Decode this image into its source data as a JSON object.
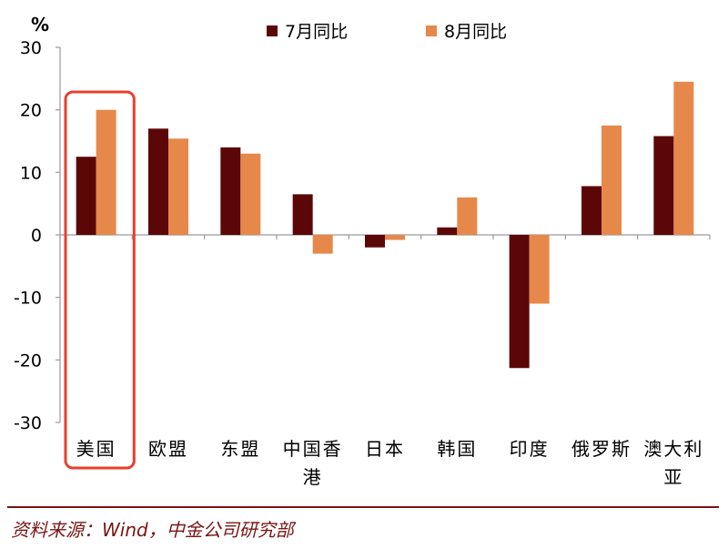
{
  "chart_data": {
    "type": "bar",
    "ylabel": "%",
    "ylim": [
      -30,
      30
    ],
    "yticks": [
      30,
      20,
      10,
      0,
      -10,
      -20,
      -30
    ],
    "categories": [
      "美国",
      "欧盟",
      "东盟",
      "中国香港",
      "日本",
      "韩国",
      "印度",
      "俄罗斯",
      "澳大利亚"
    ],
    "category_lines": [
      [
        "美国"
      ],
      [
        "欧盟"
      ],
      [
        "东盟"
      ],
      [
        "中国香",
        "港"
      ],
      [
        "日本"
      ],
      [
        "韩国"
      ],
      [
        "印度"
      ],
      [
        "俄罗斯"
      ],
      [
        "澳大利",
        "亚"
      ]
    ],
    "series": [
      {
        "name": "7月同比",
        "color": "#5c0707",
        "values": [
          12.5,
          17.0,
          14.0,
          6.5,
          -2.0,
          1.2,
          -21.3,
          7.8,
          15.8
        ]
      },
      {
        "name": "8月同比",
        "color": "#e5884a",
        "values": [
          20.0,
          15.4,
          13.0,
          -3.0,
          -0.8,
          6.0,
          -11.0,
          17.5,
          24.5
        ]
      }
    ],
    "legend_position": "top",
    "highlight": {
      "category": "美国",
      "color": "#e8402c"
    }
  },
  "source": "资料来源：Wind，中金公司研究部"
}
